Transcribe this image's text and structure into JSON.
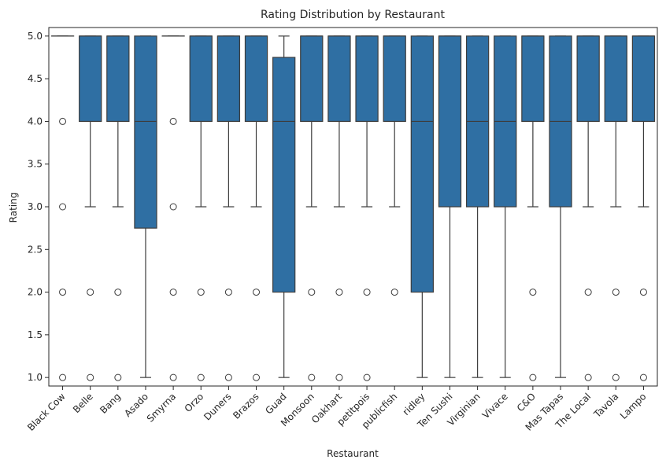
{
  "chart_data": {
    "type": "box",
    "title": "Rating Distribution by Restaurant",
    "xlabel": "Restaurant",
    "ylabel": "Rating",
    "ylim": [
      0.9,
      5.1
    ],
    "yticks": [
      "1.0",
      "1.5",
      "2.0",
      "2.5",
      "3.0",
      "3.5",
      "4.0",
      "4.5",
      "5.0"
    ],
    "grid": false,
    "legend": "none",
    "color": "#2f6fa3",
    "edge_color": "#3d3d3d",
    "categories": [
      "Black Cow",
      "Belle",
      "Bang",
      "Asado",
      "Smyrna",
      "Orzo",
      "Duners",
      "Brazos",
      "Guad",
      "Monsoon",
      "Oakhart",
      "petitpois",
      "publicfish",
      "ridley",
      "Ten Sushi",
      "Virginian",
      "Vivace",
      "C&O",
      "Mas Tapas",
      "The Local",
      "Tavola",
      "Lampo"
    ],
    "boxes": [
      {
        "q1": 5.0,
        "median": 5.0,
        "q3": 5.0,
        "whislo": 5.0,
        "whishi": 5.0,
        "fliers": [
          4.0,
          3.0,
          2.0,
          1.0
        ]
      },
      {
        "q1": 4.0,
        "median": 5.0,
        "q3": 5.0,
        "whislo": 3.0,
        "whishi": 5.0,
        "fliers": [
          2.0,
          1.0
        ]
      },
      {
        "q1": 4.0,
        "median": 5.0,
        "q3": 5.0,
        "whislo": 3.0,
        "whishi": 5.0,
        "fliers": [
          2.0,
          1.0
        ]
      },
      {
        "q1": 2.75,
        "median": 4.0,
        "q3": 5.0,
        "whislo": 1.0,
        "whishi": 5.0,
        "fliers": []
      },
      {
        "q1": 5.0,
        "median": 5.0,
        "q3": 5.0,
        "whislo": 5.0,
        "whishi": 5.0,
        "fliers": [
          4.0,
          3.0,
          2.0,
          1.0
        ]
      },
      {
        "q1": 4.0,
        "median": 5.0,
        "q3": 5.0,
        "whislo": 3.0,
        "whishi": 5.0,
        "fliers": [
          2.0,
          1.0
        ]
      },
      {
        "q1": 4.0,
        "median": 5.0,
        "q3": 5.0,
        "whislo": 3.0,
        "whishi": 5.0,
        "fliers": [
          2.0,
          1.0
        ]
      },
      {
        "q1": 4.0,
        "median": 5.0,
        "q3": 5.0,
        "whislo": 3.0,
        "whishi": 5.0,
        "fliers": [
          2.0,
          1.0
        ]
      },
      {
        "q1": 2.0,
        "median": 4.0,
        "q3": 4.75,
        "whislo": 1.0,
        "whishi": 5.0,
        "fliers": []
      },
      {
        "q1": 4.0,
        "median": 5.0,
        "q3": 5.0,
        "whislo": 3.0,
        "whishi": 5.0,
        "fliers": [
          2.0,
          1.0
        ]
      },
      {
        "q1": 4.0,
        "median": 5.0,
        "q3": 5.0,
        "whislo": 3.0,
        "whishi": 5.0,
        "fliers": [
          2.0,
          1.0
        ]
      },
      {
        "q1": 4.0,
        "median": 5.0,
        "q3": 5.0,
        "whislo": 3.0,
        "whishi": 5.0,
        "fliers": [
          2.0,
          1.0
        ]
      },
      {
        "q1": 4.0,
        "median": 5.0,
        "q3": 5.0,
        "whislo": 3.0,
        "whishi": 5.0,
        "fliers": [
          2.0
        ]
      },
      {
        "q1": 2.0,
        "median": 4.0,
        "q3": 5.0,
        "whislo": 1.0,
        "whishi": 5.0,
        "fliers": []
      },
      {
        "q1": 3.0,
        "median": 5.0,
        "q3": 5.0,
        "whislo": 1.0,
        "whishi": 5.0,
        "fliers": []
      },
      {
        "q1": 3.0,
        "median": 4.0,
        "q3": 5.0,
        "whislo": 1.0,
        "whishi": 5.0,
        "fliers": []
      },
      {
        "q1": 3.0,
        "median": 4.0,
        "q3": 5.0,
        "whislo": 1.0,
        "whishi": 5.0,
        "fliers": []
      },
      {
        "q1": 4.0,
        "median": 5.0,
        "q3": 5.0,
        "whislo": 3.0,
        "whishi": 5.0,
        "fliers": [
          2.0,
          1.0
        ]
      },
      {
        "q1": 3.0,
        "median": 4.0,
        "q3": 5.0,
        "whislo": 1.0,
        "whishi": 5.0,
        "fliers": []
      },
      {
        "q1": 4.0,
        "median": 5.0,
        "q3": 5.0,
        "whislo": 3.0,
        "whishi": 5.0,
        "fliers": [
          2.0,
          1.0
        ]
      },
      {
        "q1": 4.0,
        "median": 5.0,
        "q3": 5.0,
        "whislo": 3.0,
        "whishi": 5.0,
        "fliers": [
          2.0,
          1.0
        ]
      },
      {
        "q1": 4.0,
        "median": 5.0,
        "q3": 5.0,
        "whislo": 3.0,
        "whishi": 5.0,
        "fliers": [
          2.0,
          1.0
        ]
      }
    ]
  }
}
